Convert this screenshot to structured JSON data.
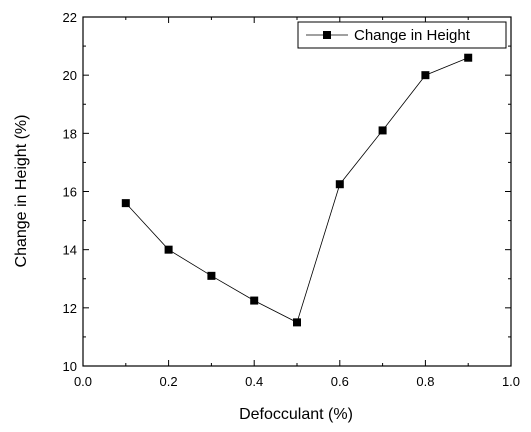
{
  "chart_data": {
    "type": "line",
    "title": "",
    "xlabel": "Defocculant (%)",
    "ylabel": "Change in Height (%)",
    "xlim": [
      0.0,
      1.0
    ],
    "ylim": [
      10,
      22
    ],
    "x_ticks": [
      0.0,
      0.2,
      0.4,
      0.6,
      0.8,
      1.0
    ],
    "x_tick_labels": [
      "0.0",
      "0.2",
      "0.4",
      "0.6",
      "0.8",
      "1.0"
    ],
    "y_ticks": [
      10,
      12,
      14,
      16,
      18,
      20,
      22
    ],
    "y_tick_labels": [
      "10",
      "12",
      "14",
      "16",
      "18",
      "20",
      "22"
    ],
    "grid": false,
    "legend_position": "top-right",
    "series": [
      {
        "name": "Change in Height",
        "color": "#000000",
        "marker": "square",
        "x": [
          0.1,
          0.2,
          0.3,
          0.4,
          0.5,
          0.6,
          0.7,
          0.8,
          0.9
        ],
        "y": [
          15.6,
          14.0,
          13.1,
          12.25,
          11.5,
          16.25,
          18.1,
          20.0,
          20.6
        ]
      }
    ]
  }
}
